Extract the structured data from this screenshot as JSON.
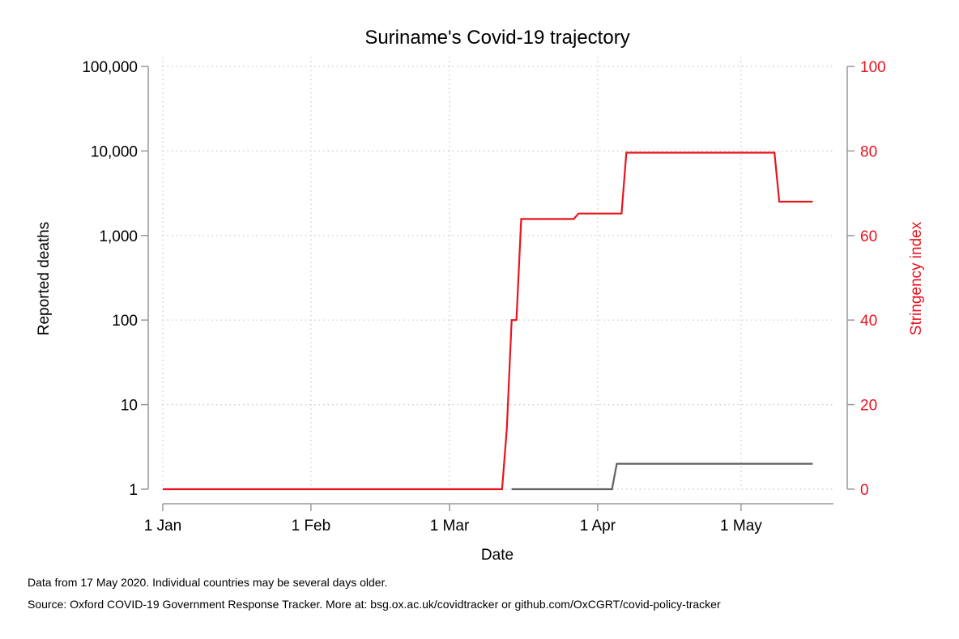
{
  "chart_data": {
    "type": "line",
    "title": "Suriname's Covid-19 trajectory",
    "xlabel": "Date",
    "ylabel_left": "Reported deaths",
    "ylabel_right": "Stringency index",
    "x_ticks": [
      "2020-01-01",
      "2020-02-01",
      "2020-03-01",
      "2020-04-01",
      "2020-05-01"
    ],
    "x_tick_labels": [
      "1 Jan",
      "1 Feb",
      "1 Mar",
      "1 Apr",
      "1 May"
    ],
    "y_left_scale": "log",
    "y_left_ticks": [
      1,
      10,
      100,
      1000,
      10000,
      100000
    ],
    "y_left_tick_labels": [
      "1",
      "10",
      "100",
      "1,000",
      "10,000",
      "100,000"
    ],
    "y_right_ticks": [
      0,
      20,
      40,
      60,
      80,
      100
    ],
    "y_right_tick_labels": [
      "0",
      "20",
      "40",
      "60",
      "80",
      "100"
    ],
    "xlim": [
      "2020-01-01",
      "2020-05-17"
    ],
    "ylim_left": [
      1,
      100000
    ],
    "ylim_right": [
      0,
      100
    ],
    "grid": true,
    "series": [
      {
        "axis": "left",
        "color": "#606060",
        "points": [
          [
            "2020-03-14",
            1
          ],
          [
            "2020-04-04",
            1
          ],
          [
            "2020-04-05",
            2
          ],
          [
            "2020-05-16",
            2
          ]
        ]
      },
      {
        "axis": "right",
        "color": "#e8141e",
        "points": [
          [
            "2020-01-01",
            0
          ],
          [
            "2020-03-12",
            0
          ],
          [
            "2020-03-13",
            14.5
          ],
          [
            "2020-03-14",
            40
          ],
          [
            "2020-03-15",
            40
          ],
          [
            "2020-03-16",
            63.9
          ],
          [
            "2020-03-27",
            63.9
          ],
          [
            "2020-03-28",
            65.2
          ],
          [
            "2020-04-06",
            65.2
          ],
          [
            "2020-04-07",
            79.6
          ],
          [
            "2020-05-08",
            79.6
          ],
          [
            "2020-05-09",
            68
          ],
          [
            "2020-05-16",
            68
          ]
        ]
      }
    ]
  },
  "footnotes": {
    "line1": "Data from 17 May 2020. Individual countries may be several days older.",
    "line2": "Source: Oxford COVID-19 Government Response Tracker. More at: bsg.ox.ac.uk/covidtracker or github.com/OxCGRT/covid-policy-tracker"
  },
  "colors": {
    "stringency": "#e8141e",
    "deaths": "#606060",
    "axis": "#999999",
    "grid": "#c8c8c8"
  }
}
